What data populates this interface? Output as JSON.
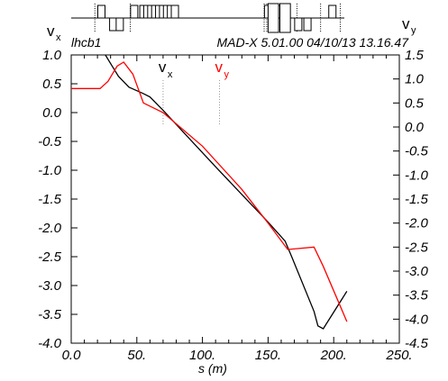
{
  "header": {
    "left_label": "lhcb1",
    "right_label": "MAD-X 5.01.00  04/10/13 13.16.47"
  },
  "chart_data": {
    "type": "line",
    "xlabel": "s (m)",
    "ylabel_left": {
      "symbol": "v",
      "sub": "x"
    },
    "ylabel_right": {
      "symbol": "v",
      "sub": "y"
    },
    "xlim": [
      0,
      250
    ],
    "ylim_left": [
      -4.0,
      1.0
    ],
    "ylim_right": [
      -4.5,
      1.5
    ],
    "x_ticks": [
      "0.0",
      "50.",
      "100.",
      "150.",
      "200.",
      "250."
    ],
    "y_left_ticks": [
      "1.0",
      "0.5",
      "0.0",
      "-0.5",
      "-1.0",
      "-1.5",
      "-2.0",
      "-2.5",
      "-3.0",
      "-3.5",
      "-4.0"
    ],
    "y_right_ticks": [
      "1.5",
      "1.0",
      "0.5",
      "0.0",
      "-0.5",
      "-1.0",
      "-1.5",
      "-2.0",
      "-2.5",
      "-3.0",
      "-3.5",
      "-4.0",
      "-4.5"
    ],
    "series": [
      {
        "name": "v_x",
        "color": "#000000",
        "axis": "left",
        "x": [
          26,
          30,
          36,
          44,
          50,
          55,
          60,
          70,
          90,
          110,
          130,
          150,
          163,
          168,
          185,
          188,
          192,
          210
        ],
        "y": [
          1.0,
          0.85,
          0.63,
          0.44,
          0.38,
          0.33,
          0.27,
          0.04,
          -0.45,
          -0.94,
          -1.42,
          -1.9,
          -2.23,
          -2.5,
          -3.45,
          -3.7,
          -3.75,
          -3.1
        ]
      },
      {
        "name": "v_y",
        "color": "#ff0000",
        "axis": "right",
        "x": [
          0,
          22,
          28,
          35,
          40,
          47,
          55,
          70,
          100,
          130,
          150,
          165,
          185,
          192,
          210
        ],
        "y": [
          0.8,
          0.8,
          0.95,
          1.27,
          1.35,
          1.1,
          0.5,
          0.3,
          -0.4,
          -1.3,
          -2.0,
          -2.55,
          -2.5,
          -2.9,
          -4.05
        ]
      }
    ],
    "markers": [
      {
        "label_symbol": "v",
        "label_sub": "x",
        "color": "#000000",
        "x": 70
      },
      {
        "label_symbol": "v",
        "label_sub": "y",
        "color": "#ff0000",
        "x": 113
      }
    ],
    "lattice": {
      "beamline_y": 20,
      "boxes": [
        {
          "x": 23,
          "up": true
        },
        {
          "x": 32,
          "up": false
        },
        {
          "x": 37,
          "up": false
        },
        {
          "x": 48,
          "up": true
        },
        {
          "x": 55,
          "up": true
        },
        {
          "x": 58,
          "up": true
        },
        {
          "x": 61,
          "up": true
        },
        {
          "x": 64,
          "up": true
        },
        {
          "x": 67,
          "up": true
        },
        {
          "x": 70,
          "up": true
        },
        {
          "x": 73,
          "up": true
        },
        {
          "x": 76,
          "up": true
        },
        {
          "x": 79,
          "up": true
        },
        {
          "x": 150,
          "up": true
        },
        {
          "x": 159,
          "up": true
        },
        {
          "x": 173,
          "up": false
        },
        {
          "x": 180,
          "up": false
        },
        {
          "x": 199,
          "up": true
        }
      ],
      "dotted_lines": [
        18,
        45,
        147,
        149,
        172,
        190,
        205
      ],
      "wide_boxes": [
        {
          "x1": 150,
          "x2": 158,
          "up": true
        },
        {
          "x1": 159,
          "x2": 167,
          "up": true
        }
      ]
    }
  }
}
